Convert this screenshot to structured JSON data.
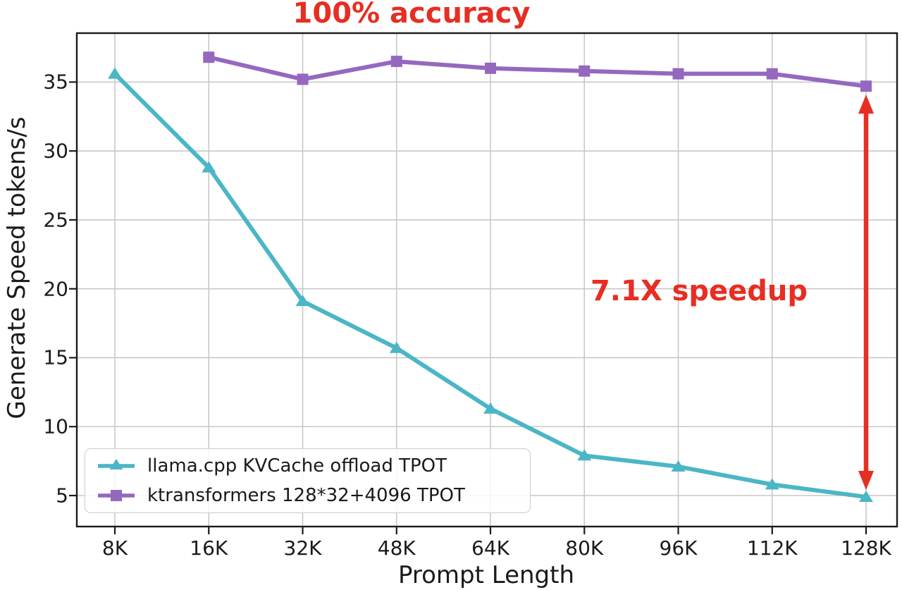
{
  "chart_data": {
    "type": "line",
    "title": "100% accuracy",
    "xlabel": "Prompt Length",
    "ylabel": "Generate Speed tokens/s",
    "categories": [
      "8K",
      "16K",
      "32K",
      "48K",
      "64K",
      "80K",
      "96K",
      "112K",
      "128K"
    ],
    "yticks": [
      5,
      10,
      15,
      20,
      25,
      30,
      35
    ],
    "ylim": [
      2.75,
      38.55
    ],
    "grid": true,
    "legend_position": "lower-left",
    "series": [
      {
        "name": "llama.cpp KVCache offload TPOT",
        "color": "#4bb6c5",
        "marker": "triangle",
        "x": [
          "8K",
          "16K",
          "32K",
          "48K",
          "64K",
          "80K",
          "96K",
          "112K",
          "128K"
        ],
        "values": [
          35.6,
          28.8,
          19.1,
          15.7,
          11.3,
          7.9,
          7.1,
          5.8,
          4.9
        ]
      },
      {
        "name": "ktransformers 128*32+4096 TPOT",
        "color": "#9568bf",
        "marker": "square",
        "x": [
          "16K",
          "32K",
          "48K",
          "64K",
          "80K",
          "96K",
          "112K",
          "128K"
        ],
        "values": [
          36.8,
          35.2,
          36.5,
          36.0,
          35.8,
          35.6,
          35.6,
          34.7
        ]
      }
    ],
    "annotations": [
      {
        "text": "7.1X speedup",
        "color": "#e62e22",
        "arrow": {
          "at": "128K",
          "from_value": 34.7,
          "to_value": 4.9,
          "style": "double-headed-vertical"
        }
      }
    ],
    "title_color": "#e62e22",
    "grid_color": "#c8c8c8",
    "spine_color": "#1a1a1a",
    "tick_color": "#1a1a1a"
  }
}
